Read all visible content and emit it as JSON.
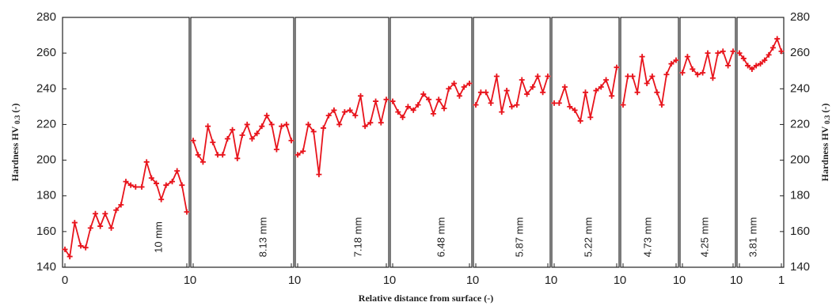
{
  "chart_data": {
    "type": "line",
    "color": "#e8141c",
    "ylabel": [
      "Hardness HV",
      "0.3",
      "(-)"
    ],
    "xlabel": "Relative distance from surface (-)",
    "ylim": [
      140,
      280
    ],
    "yticks": [
      140,
      160,
      180,
      200,
      220,
      240,
      260,
      280
    ],
    "y2lim": [
      140,
      280
    ],
    "y2ticks": [
      140,
      160,
      180,
      200,
      220,
      240,
      260,
      280
    ],
    "panels": [
      {
        "label": "10 mm",
        "xlim": [
          0,
          1
        ],
        "xticks": [
          0,
          1
        ],
        "x": [
          0,
          0.04,
          0.08,
          0.13,
          0.17,
          0.21,
          0.25,
          0.29,
          0.33,
          0.38,
          0.42,
          0.46,
          0.5,
          0.54,
          0.58,
          0.63,
          0.67,
          0.71,
          0.75,
          0.79,
          0.83,
          0.88,
          0.92,
          0.96,
          1
        ],
        "values": [
          150,
          146,
          165,
          152,
          151,
          162,
          170,
          163,
          170,
          162,
          172,
          175,
          188,
          186,
          185,
          185,
          199,
          190,
          187,
          178,
          186,
          188,
          194,
          186,
          171
        ]
      },
      {
        "label": "8.13 mm",
        "xlim": [
          0,
          1
        ],
        "xticks": [
          0,
          1
        ],
        "x": [
          0,
          0.05,
          0.1,
          0.15,
          0.2,
          0.25,
          0.3,
          0.35,
          0.4,
          0.45,
          0.5,
          0.55,
          0.6,
          0.65,
          0.7,
          0.75,
          0.8,
          0.85,
          0.9,
          0.95,
          1
        ],
        "values": [
          211,
          203,
          199,
          219,
          210,
          203,
          203,
          212,
          217,
          201,
          214,
          220,
          212,
          215,
          219,
          225,
          220,
          206,
          219,
          220,
          211
        ]
      },
      {
        "label": "7.18 mm",
        "xlim": [
          0,
          1
        ],
        "xticks": [
          0,
          1
        ],
        "x": [
          0,
          0.06,
          0.12,
          0.18,
          0.24,
          0.29,
          0.35,
          0.41,
          0.47,
          0.53,
          0.59,
          0.65,
          0.71,
          0.76,
          0.82,
          0.88,
          0.94,
          1
        ],
        "values": [
          203,
          205,
          220,
          216,
          192,
          218,
          225,
          228,
          220,
          227,
          228,
          225,
          236,
          219,
          221,
          233,
          221,
          234
        ]
      },
      {
        "label": "6.48 mm",
        "xlim": [
          0,
          1
        ],
        "xticks": [
          0,
          1
        ],
        "x": [
          0,
          0.07,
          0.13,
          0.2,
          0.27,
          0.33,
          0.4,
          0.47,
          0.53,
          0.6,
          0.67,
          0.73,
          0.8,
          0.87,
          0.93,
          1
        ],
        "values": [
          233,
          227,
          224,
          230,
          228,
          231,
          237,
          234,
          226,
          234,
          229,
          240,
          243,
          236,
          241,
          243
        ]
      },
      {
        "label": "5.87 mm",
        "xlim": [
          0,
          1
        ],
        "xticks": [
          0,
          1
        ],
        "x": [
          0,
          0.07,
          0.14,
          0.21,
          0.29,
          0.36,
          0.43,
          0.5,
          0.57,
          0.64,
          0.71,
          0.79,
          0.86,
          0.93,
          1
        ],
        "values": [
          231,
          238,
          238,
          232,
          247,
          227,
          239,
          230,
          231,
          245,
          237,
          241,
          247,
          238,
          247
        ]
      },
      {
        "label": "5.22 mm",
        "xlim": [
          0,
          1
        ],
        "xticks": [
          0,
          1
        ],
        "x": [
          0,
          0.08,
          0.17,
          0.25,
          0.33,
          0.42,
          0.5,
          0.58,
          0.67,
          0.75,
          0.83,
          0.92,
          1
        ],
        "values": [
          232,
          232,
          241,
          230,
          228,
          222,
          238,
          224,
          239,
          241,
          245,
          236,
          252
        ]
      },
      {
        "label": "4.73 mm",
        "xlim": [
          0,
          1
        ],
        "xticks": [
          0,
          1
        ],
        "x": [
          0,
          0.09,
          0.18,
          0.27,
          0.36,
          0.45,
          0.55,
          0.64,
          0.73,
          0.82,
          0.91,
          1
        ],
        "values": [
          231,
          247,
          247,
          238,
          258,
          243,
          247,
          238,
          231,
          248,
          254,
          256
        ]
      },
      {
        "label": "4.25 mm",
        "xlim": [
          0,
          1
        ],
        "xticks": [
          0,
          1
        ],
        "x": [
          0,
          0.1,
          0.2,
          0.3,
          0.4,
          0.5,
          0.6,
          0.7,
          0.8,
          0.9,
          1
        ],
        "values": [
          249,
          258,
          251,
          248,
          249,
          260,
          246,
          260,
          261,
          253,
          261
        ]
      },
      {
        "label": "3.81 mm",
        "xlim": [
          0,
          1
        ],
        "xticks": [
          0,
          1
        ],
        "x": [
          0,
          0.1,
          0.2,
          0.3,
          0.4,
          0.5,
          0.6,
          0.7,
          0.8,
          0.9,
          1
        ],
        "values": [
          260,
          257,
          253,
          251,
          253,
          254,
          256,
          259,
          263,
          268,
          261
        ]
      }
    ]
  }
}
